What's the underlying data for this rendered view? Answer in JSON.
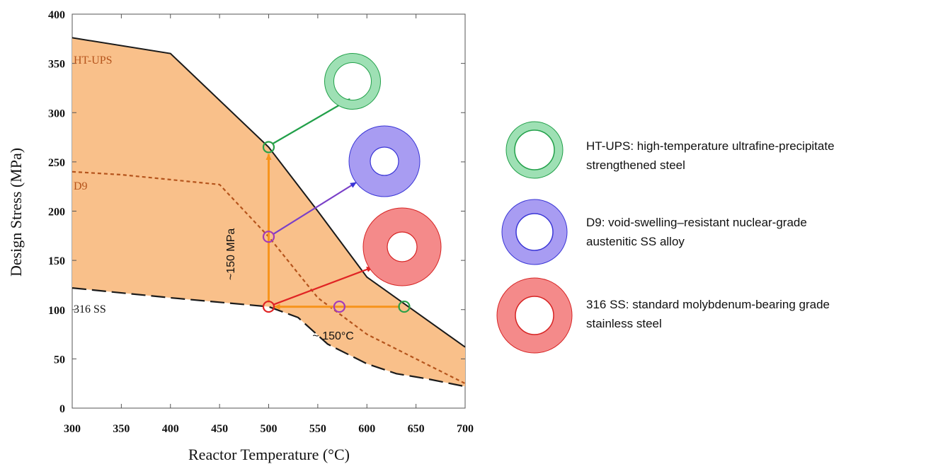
{
  "chart_data": {
    "type": "area",
    "xlabel": "Reactor Temperature (°C)",
    "ylabel": "Design Stress (MPa)",
    "xlim": [
      300,
      700
    ],
    "ylim": [
      0,
      400
    ],
    "xticks": [
      300,
      350,
      400,
      450,
      500,
      550,
      600,
      650,
      700
    ],
    "yticks": [
      0,
      50,
      100,
      150,
      200,
      250,
      300,
      350,
      400
    ],
    "grid": false,
    "series": [
      {
        "name": "HT-UPS",
        "color": "#1a1a1a",
        "style": "solid",
        "x": [
          300,
          400,
          500,
          550,
          600,
          700
        ],
        "y": [
          376,
          360,
          265,
          200,
          133,
          62
        ]
      },
      {
        "name": "D9",
        "color": "#b5541c",
        "style": "dashed",
        "x": [
          300,
          350,
          450,
          500,
          550,
          600,
          650,
          700
        ],
        "y": [
          240,
          237,
          227,
          174,
          112,
          75,
          50,
          25
        ]
      },
      {
        "name": "316 SS",
        "color": "#1a1a1a",
        "style": "long-dash",
        "x": [
          300,
          400,
          500,
          530,
          560,
          600,
          630,
          660,
          700
        ],
        "y": [
          122,
          112,
          103,
          92,
          65,
          45,
          35,
          30,
          22
        ]
      }
    ],
    "fill": {
      "between": [
        "HT-UPS",
        "316 SS"
      ],
      "color": "#f9c08a"
    },
    "markers": [
      {
        "series": "HT-UPS",
        "x": 500,
        "y": 265,
        "color": "#2ca048"
      },
      {
        "series": "D9",
        "x": 500,
        "y": 174,
        "color": "#a43ab8"
      },
      {
        "series": "316 SS",
        "x": 500,
        "y": 103,
        "color": "#e02424"
      },
      {
        "series": "D9",
        "x": 572,
        "y": 103,
        "color": "#a43ab8"
      },
      {
        "series": "HT-UPS",
        "x": 638,
        "y": 103,
        "color": "#2ca048"
      }
    ],
    "annotations": [
      {
        "text": "~150 MPa",
        "x": 478,
        "y": 185,
        "rotate": -90
      },
      {
        "text": "~ 150°C",
        "x": 570,
        "y": 82,
        "rotate": 0
      }
    ],
    "arrow_color": "#f7941d"
  },
  "legend": {
    "items": [
      {
        "label_line1": "HT-UPS: high-temperature ultrafine-precipitate",
        "label_line2": "strengthened steel",
        "ring_fill": "#9ee0b4",
        "ring_stroke": "#22a04a",
        "icon": "green-tube-icon"
      },
      {
        "label_line1": "D9: void-swelling–resistant nuclear-grade",
        "label_line2": "austenitic SS alloy",
        "ring_fill": "#a89cf2",
        "ring_stroke": "#3a36d6",
        "icon": "purple-tube-icon"
      },
      {
        "label_line1": "316 SS: standard molybdenum-bearing grade",
        "label_line2": "stainless steel",
        "ring_fill": "#f48a8a",
        "ring_stroke": "#d62424",
        "icon": "red-tube-icon"
      }
    ]
  }
}
